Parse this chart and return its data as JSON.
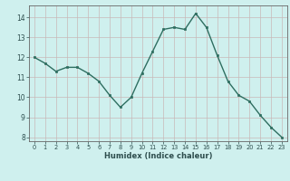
{
  "x": [
    0,
    1,
    2,
    3,
    4,
    5,
    6,
    7,
    8,
    9,
    10,
    11,
    12,
    13,
    14,
    15,
    16,
    17,
    18,
    19,
    20,
    21,
    22,
    23
  ],
  "y": [
    12.0,
    11.7,
    11.3,
    11.5,
    11.5,
    11.2,
    10.8,
    10.1,
    9.5,
    10.0,
    11.2,
    12.3,
    13.4,
    13.5,
    13.4,
    14.2,
    13.5,
    12.1,
    10.8,
    10.1,
    9.8,
    9.1,
    8.5,
    8.0
  ],
  "xlabel": "Humidex (Indice chaleur)",
  "xlim": [
    -0.5,
    23.5
  ],
  "ylim": [
    7.8,
    14.6
  ],
  "yticks": [
    8,
    9,
    10,
    11,
    12,
    13,
    14
  ],
  "xticks": [
    0,
    1,
    2,
    3,
    4,
    5,
    6,
    7,
    8,
    9,
    10,
    11,
    12,
    13,
    14,
    15,
    16,
    17,
    18,
    19,
    20,
    21,
    22,
    23
  ],
  "bg_color": "#cff0ee",
  "line_color": "#2e6e60",
  "grid_color": "#c8b8b8",
  "axis_color": "#666666",
  "label_color": "#2e4e4e"
}
